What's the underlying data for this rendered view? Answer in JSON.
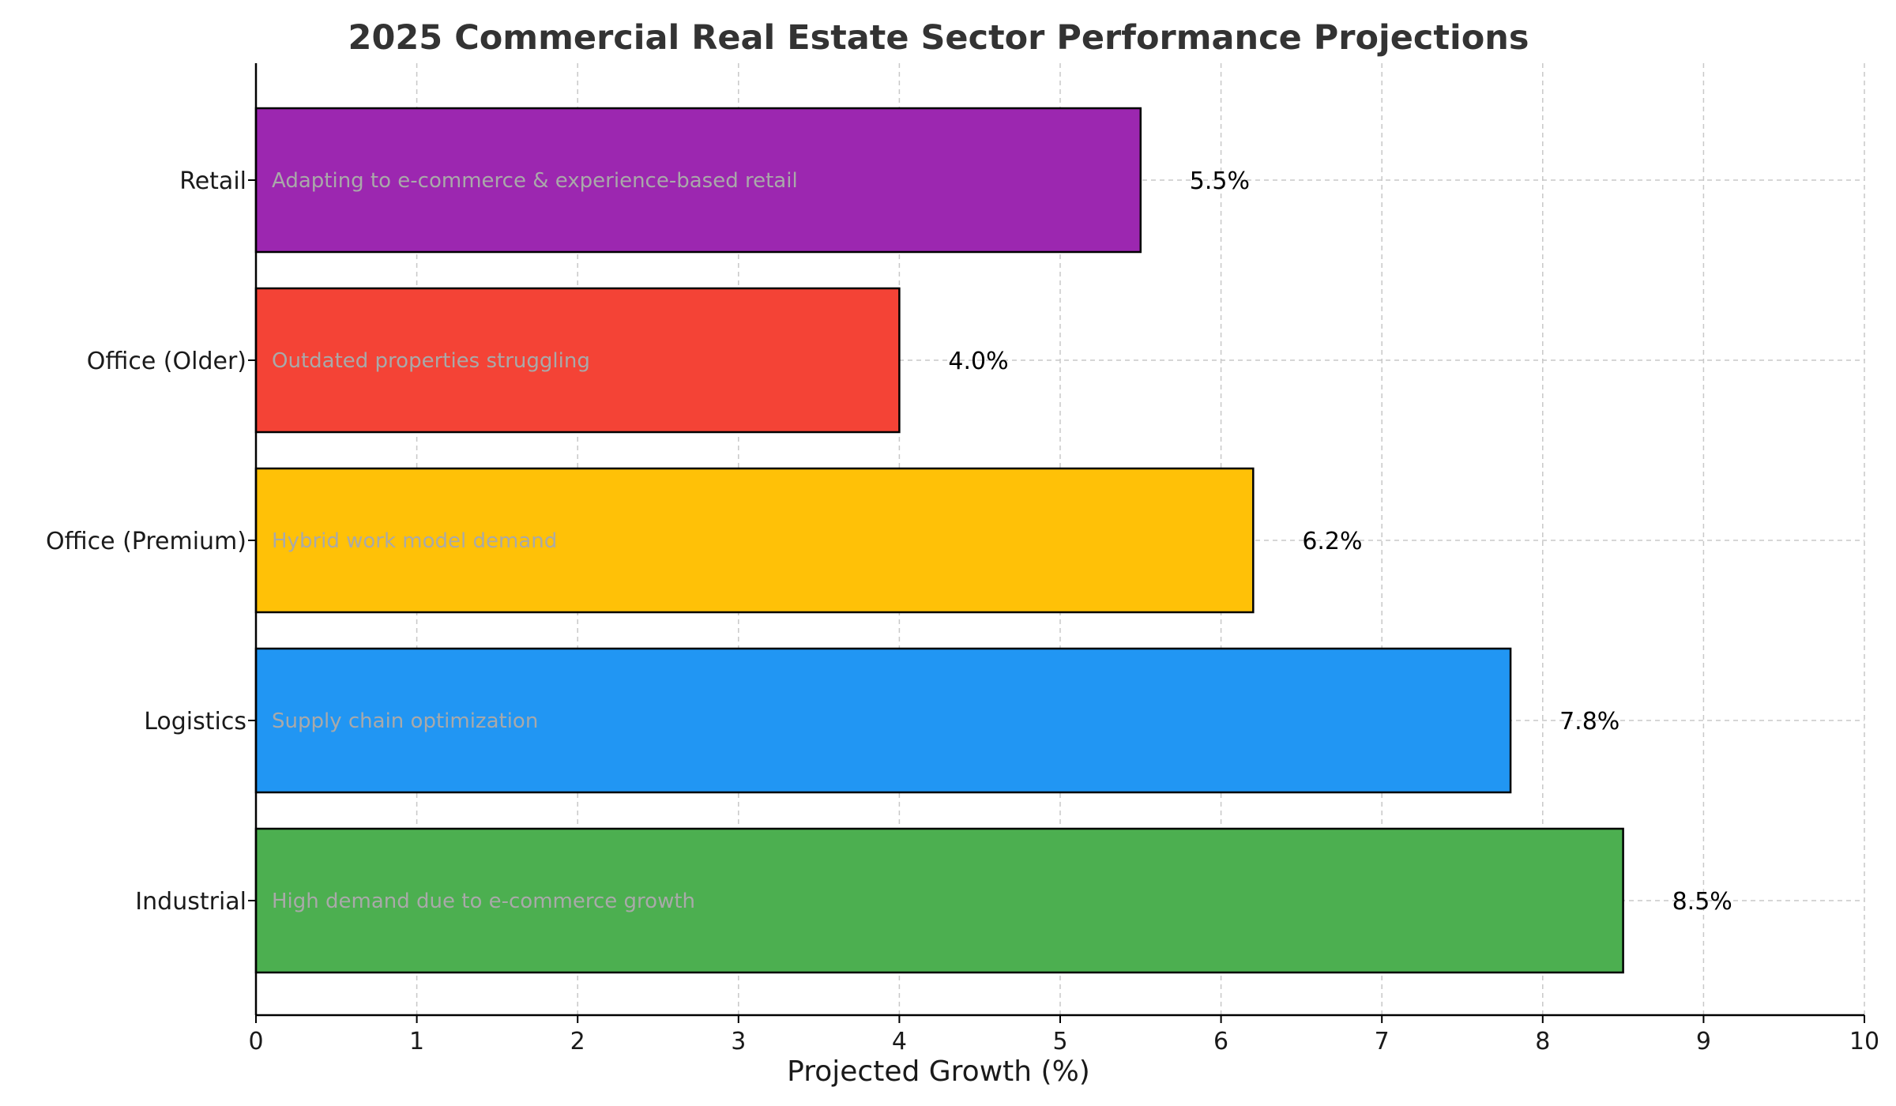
{
  "chart_data": {
    "type": "bar",
    "orientation": "horizontal",
    "title": "2025 Commercial Real Estate Sector Performance Projections",
    "xlabel": "Projected Growth (%)",
    "ylabel": "",
    "xlim": [
      0,
      10
    ],
    "x_ticks": [
      "0",
      "1",
      "2",
      "3",
      "4",
      "5",
      "6",
      "7",
      "8",
      "9",
      "10"
    ],
    "grid": true,
    "categories": [
      "Industrial",
      "Logistics",
      "Office (Premium)",
      "Office (Older)",
      "Retail"
    ],
    "values": [
      8.5,
      7.8,
      6.2,
      4.0,
      5.5
    ],
    "value_labels": [
      "8.5%",
      "7.8%",
      "6.2%",
      "4.0%",
      "5.5%"
    ],
    "annotations": [
      "High demand due to e-commerce growth",
      "Supply chain optimization",
      "Hybrid work model demand",
      "Outdated properties struggling",
      "Adapting to e-commerce & experience-based retail"
    ],
    "colors": [
      "#4caf50",
      "#2196f3",
      "#ffc107",
      "#f44336",
      "#9c27b0"
    ]
  }
}
